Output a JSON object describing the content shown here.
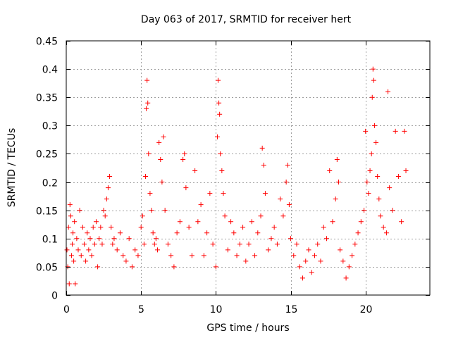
{
  "chart_data": {
    "type": "scatter",
    "title": "Day 063 of 2017, SRMTID for receiver hert",
    "xlabel": "GPS time / hours",
    "ylabel": "SRMTID / TECUs",
    "xlim": [
      0,
      24.3
    ],
    "ylim": [
      0,
      0.45
    ],
    "xticks": [
      0,
      5,
      10,
      15,
      20
    ],
    "xtick_labels": [
      "0",
      "5",
      "10",
      "15",
      "20"
    ],
    "yticks": [
      0,
      0.05,
      0.1,
      0.15,
      0.2,
      0.25,
      0.3,
      0.35,
      0.4,
      0.45
    ],
    "ytick_labels": [
      "0",
      "0.05",
      "0.1",
      "0.15",
      "0.2",
      "0.25",
      "0.3",
      "0.35",
      "0.4",
      "0.45"
    ],
    "grid": true,
    "marker": "+",
    "color": "#ff0000",
    "series": [
      {
        "name": "SRMTID",
        "points": [
          [
            0.05,
            0.08
          ],
          [
            0.1,
            0.05
          ],
          [
            0.15,
            0.12
          ],
          [
            0.2,
            0.02
          ],
          [
            0.25,
            0.16
          ],
          [
            0.3,
            0.14
          ],
          [
            0.35,
            0.07
          ],
          [
            0.4,
            0.09
          ],
          [
            0.45,
            0.11
          ],
          [
            0.5,
            0.06
          ],
          [
            0.55,
            0.13
          ],
          [
            0.6,
            0.02
          ],
          [
            0.7,
            0.1
          ],
          [
            0.8,
            0.08
          ],
          [
            0.9,
            0.15
          ],
          [
            1.0,
            0.07
          ],
          [
            1.1,
            0.12
          ],
          [
            1.2,
            0.09
          ],
          [
            1.3,
            0.06
          ],
          [
            1.4,
            0.11
          ],
          [
            1.5,
            0.08
          ],
          [
            1.6,
            0.1
          ],
          [
            1.7,
            0.07
          ],
          [
            1.8,
            0.12
          ],
          [
            1.9,
            0.09
          ],
          [
            2.0,
            0.13
          ],
          [
            2.1,
            0.05
          ],
          [
            2.2,
            0.1
          ],
          [
            2.3,
            0.12
          ],
          [
            2.4,
            0.09
          ],
          [
            2.5,
            0.15
          ],
          [
            2.6,
            0.14
          ],
          [
            2.7,
            0.17
          ],
          [
            2.8,
            0.19
          ],
          [
            2.9,
            0.21
          ],
          [
            3.0,
            0.12
          ],
          [
            3.1,
            0.09
          ],
          [
            3.2,
            0.1
          ],
          [
            3.4,
            0.08
          ],
          [
            3.6,
            0.11
          ],
          [
            3.8,
            0.07
          ],
          [
            4.0,
            0.06
          ],
          [
            4.2,
            0.1
          ],
          [
            4.4,
            0.05
          ],
          [
            4.6,
            0.08
          ],
          [
            4.8,
            0.07
          ],
          [
            5.0,
            0.12
          ],
          [
            5.1,
            0.14
          ],
          [
            5.2,
            0.09
          ],
          [
            5.3,
            0.21
          ],
          [
            5.35,
            0.33
          ],
          [
            5.4,
            0.38
          ],
          [
            5.45,
            0.34
          ],
          [
            5.5,
            0.25
          ],
          [
            5.6,
            0.18
          ],
          [
            5.7,
            0.15
          ],
          [
            5.8,
            0.11
          ],
          [
            5.9,
            0.09
          ],
          [
            6.0,
            0.1
          ],
          [
            6.1,
            0.08
          ],
          [
            6.2,
            0.27
          ],
          [
            6.3,
            0.24
          ],
          [
            6.4,
            0.2
          ],
          [
            6.5,
            0.28
          ],
          [
            6.6,
            0.15
          ],
          [
            6.8,
            0.09
          ],
          [
            7.0,
            0.07
          ],
          [
            7.2,
            0.05
          ],
          [
            7.4,
            0.11
          ],
          [
            7.6,
            0.13
          ],
          [
            7.8,
            0.24
          ],
          [
            7.9,
            0.25
          ],
          [
            8.0,
            0.19
          ],
          [
            8.2,
            0.12
          ],
          [
            8.4,
            0.07
          ],
          [
            8.6,
            0.22
          ],
          [
            8.8,
            0.13
          ],
          [
            9.0,
            0.16
          ],
          [
            9.2,
            0.07
          ],
          [
            9.4,
            0.11
          ],
          [
            9.6,
            0.18
          ],
          [
            9.8,
            0.09
          ],
          [
            10.0,
            0.05
          ],
          [
            10.1,
            0.28
          ],
          [
            10.15,
            0.38
          ],
          [
            10.2,
            0.34
          ],
          [
            10.25,
            0.32
          ],
          [
            10.3,
            0.25
          ],
          [
            10.4,
            0.22
          ],
          [
            10.5,
            0.18
          ],
          [
            10.6,
            0.14
          ],
          [
            10.8,
            0.08
          ],
          [
            11.0,
            0.13
          ],
          [
            11.2,
            0.11
          ],
          [
            11.4,
            0.07
          ],
          [
            11.6,
            0.09
          ],
          [
            11.8,
            0.12
          ],
          [
            12.0,
            0.06
          ],
          [
            12.2,
            0.09
          ],
          [
            12.4,
            0.13
          ],
          [
            12.6,
            0.07
          ],
          [
            12.8,
            0.11
          ],
          [
            13.0,
            0.14
          ],
          [
            13.1,
            0.26
          ],
          [
            13.2,
            0.23
          ],
          [
            13.3,
            0.18
          ],
          [
            13.5,
            0.08
          ],
          [
            13.7,
            0.1
          ],
          [
            13.9,
            0.12
          ],
          [
            14.1,
            0.09
          ],
          [
            14.3,
            0.17
          ],
          [
            14.5,
            0.14
          ],
          [
            14.7,
            0.2
          ],
          [
            14.8,
            0.23
          ],
          [
            14.9,
            0.16
          ],
          [
            15.0,
            0.1
          ],
          [
            15.2,
            0.07
          ],
          [
            15.4,
            0.09
          ],
          [
            15.6,
            0.05
          ],
          [
            15.8,
            0.03
          ],
          [
            16.0,
            0.06
          ],
          [
            16.2,
            0.08
          ],
          [
            16.4,
            0.04
          ],
          [
            16.6,
            0.07
          ],
          [
            16.8,
            0.09
          ],
          [
            17.0,
            0.06
          ],
          [
            17.2,
            0.12
          ],
          [
            17.4,
            0.1
          ],
          [
            17.6,
            0.22
          ],
          [
            17.8,
            0.13
          ],
          [
            18.0,
            0.17
          ],
          [
            18.1,
            0.24
          ],
          [
            18.2,
            0.2
          ],
          [
            18.3,
            0.08
          ],
          [
            18.5,
            0.06
          ],
          [
            18.7,
            0.03
          ],
          [
            18.9,
            0.05
          ],
          [
            19.1,
            0.07
          ],
          [
            19.3,
            0.09
          ],
          [
            19.5,
            0.11
          ],
          [
            19.7,
            0.13
          ],
          [
            19.9,
            0.15
          ],
          [
            20.0,
            0.29
          ],
          [
            20.1,
            0.2
          ],
          [
            20.2,
            0.18
          ],
          [
            20.3,
            0.22
          ],
          [
            20.4,
            0.25
          ],
          [
            20.45,
            0.35
          ],
          [
            20.5,
            0.4
          ],
          [
            20.55,
            0.38
          ],
          [
            20.6,
            0.3
          ],
          [
            20.7,
            0.27
          ],
          [
            20.8,
            0.21
          ],
          [
            20.9,
            0.17
          ],
          [
            21.0,
            0.14
          ],
          [
            21.2,
            0.12
          ],
          [
            21.4,
            0.11
          ],
          [
            21.5,
            0.36
          ],
          [
            21.6,
            0.19
          ],
          [
            21.8,
            0.15
          ],
          [
            22.0,
            0.29
          ],
          [
            22.2,
            0.21
          ],
          [
            22.4,
            0.13
          ],
          [
            22.6,
            0.29
          ],
          [
            22.7,
            0.22
          ]
        ]
      }
    ]
  }
}
